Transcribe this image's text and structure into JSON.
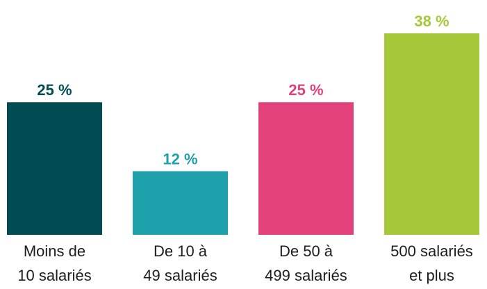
{
  "chart_data": {
    "type": "bar",
    "categories": [
      "Moins de\n10 salariés",
      "De 10 à\n49 salariés",
      "De 50 à\n499 salariés",
      "500 salariés\net plus"
    ],
    "values": [
      25,
      12,
      25,
      38
    ],
    "value_labels": [
      "25 %",
      "12 %",
      "25 %",
      "38 %"
    ],
    "colors": [
      "#004c52",
      "#1ea1ab",
      "#e2417c",
      "#a5c73a"
    ]
  }
}
